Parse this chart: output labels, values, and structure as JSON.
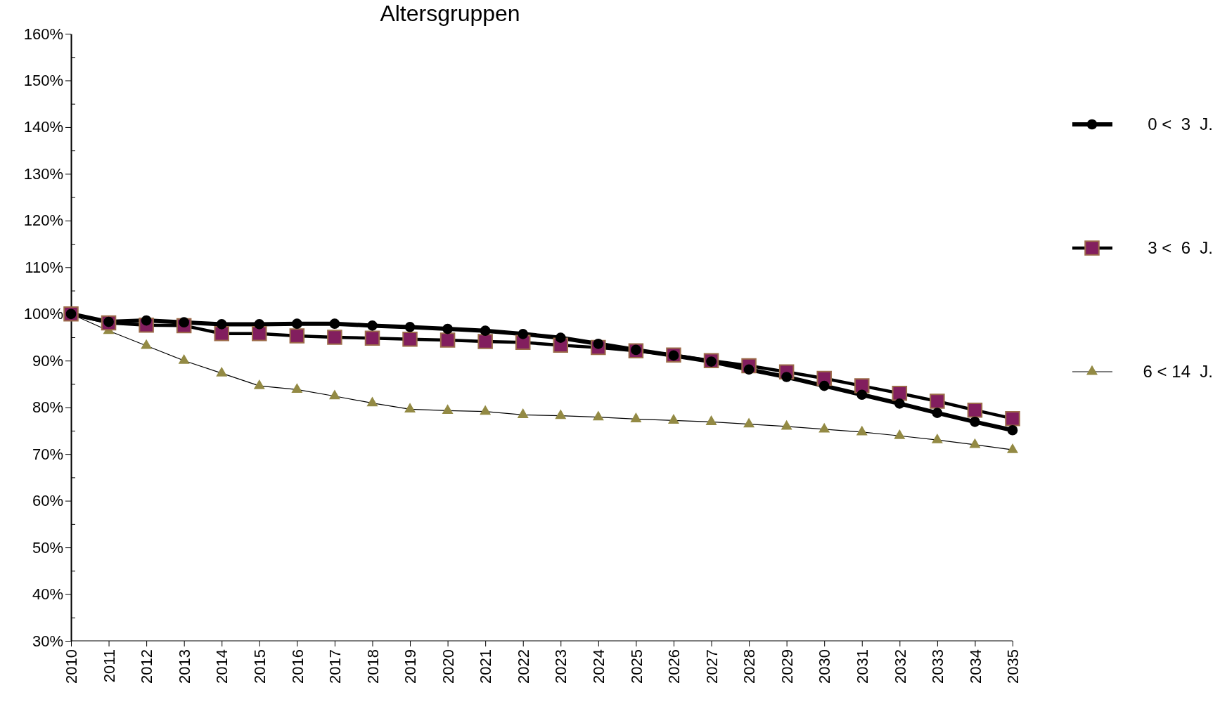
{
  "chart_data": {
    "type": "line",
    "title": "Altersgruppen",
    "categories": [
      "2010",
      "2011",
      "2012",
      "2013",
      "2014",
      "2015",
      "2016",
      "2017",
      "2018",
      "2019",
      "2020",
      "2021",
      "2022",
      "2023",
      "2024",
      "2025",
      "2026",
      "2027",
      "2028",
      "2029",
      "2030",
      "2031",
      "2032",
      "2033",
      "2034",
      "2035"
    ],
    "series": [
      {
        "name": "0 <  3  J.",
        "color": "#000000",
        "marker": "circle",
        "values": [
          100,
          98.3,
          98.6,
          98.2,
          97.8,
          97.8,
          97.9,
          97.9,
          97.5,
          97.2,
          96.8,
          96.4,
          95.7,
          94.9,
          93.6,
          92.3,
          91.1,
          89.8,
          88.1,
          86.5,
          84.6,
          82.7,
          80.8,
          78.8,
          76.9,
          75.1
        ]
      },
      {
        "name": "3 <  6  J.",
        "color": "#821e5e",
        "marker": "square",
        "values": [
          100,
          98.1,
          97.6,
          97.5,
          95.8,
          95.8,
          95.3,
          95.0,
          94.8,
          94.6,
          94.4,
          94.1,
          93.9,
          93.3,
          92.8,
          92.1,
          91.2,
          90.0,
          88.9,
          87.6,
          86.2,
          84.6,
          83.0,
          81.3,
          79.4,
          77.6
        ]
      },
      {
        "name": "6 < 14  J.",
        "color": "#938a44",
        "marker": "triangle",
        "values": [
          100,
          96.4,
          93.2,
          90.0,
          87.3,
          84.6,
          83.8,
          82.4,
          80.9,
          79.6,
          79.3,
          79.1,
          78.4,
          78.2,
          77.9,
          77.5,
          77.2,
          76.9,
          76.4,
          75.9,
          75.3,
          74.7,
          73.9,
          73.0,
          72.0,
          70.9
        ]
      }
    ],
    "ylim": [
      30,
      160
    ],
    "yticks": [
      {
        "value": 30,
        "label": "30%"
      },
      {
        "value": 35,
        "label": null
      },
      {
        "value": 40,
        "label": "40%"
      },
      {
        "value": 45,
        "label": null
      },
      {
        "value": 50,
        "label": "50%"
      },
      {
        "value": 55,
        "label": null
      },
      {
        "value": 60,
        "label": "60%"
      },
      {
        "value": 65,
        "label": null
      },
      {
        "value": 70,
        "label": "70%"
      },
      {
        "value": 75,
        "label": null
      },
      {
        "value": 80,
        "label": "80%"
      },
      {
        "value": 85,
        "label": null
      },
      {
        "value": 90,
        "label": "90%"
      },
      {
        "value": 95,
        "label": null
      },
      {
        "value": 100,
        "label": "100%"
      },
      {
        "value": 105,
        "label": null
      },
      {
        "value": 110,
        "label": "110%"
      },
      {
        "value": 115,
        "label": null
      },
      {
        "value": 120,
        "label": "120%"
      },
      {
        "value": 125,
        "label": null
      },
      {
        "value": 130,
        "label": "130%"
      },
      {
        "value": 135,
        "label": null
      },
      {
        "value": 140,
        "label": "140%"
      },
      {
        "value": 145,
        "label": null
      },
      {
        "value": 150,
        "label": "150%"
      },
      {
        "value": 155,
        "label": null
      },
      {
        "value": 160,
        "label": "160%"
      }
    ],
    "grid": false,
    "legend": "right"
  }
}
